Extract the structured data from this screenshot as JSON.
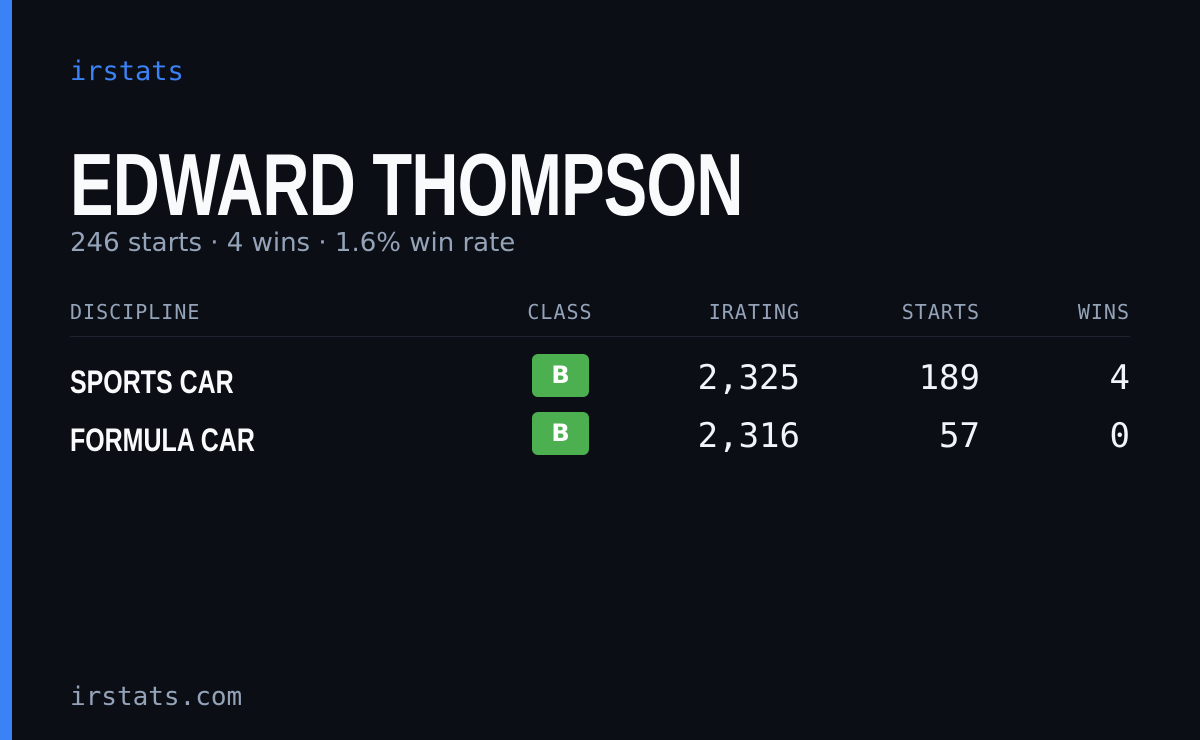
{
  "header": {
    "brand": "irstats",
    "name": "EDWARD THOMPSON",
    "summary": "246 starts · 4 wins · 1.6% win rate"
  },
  "table": {
    "columns": [
      "DISCIPLINE",
      "CLASS",
      "IRATING",
      "STARTS",
      "WINS"
    ],
    "rows": [
      [
        "SPORTS CAR",
        "B",
        "2,325",
        "189",
        "4"
      ],
      [
        "FORMULA CAR",
        "B",
        "2,316",
        "57",
        "0"
      ]
    ]
  },
  "footer": {
    "url": "irstats.com"
  }
}
